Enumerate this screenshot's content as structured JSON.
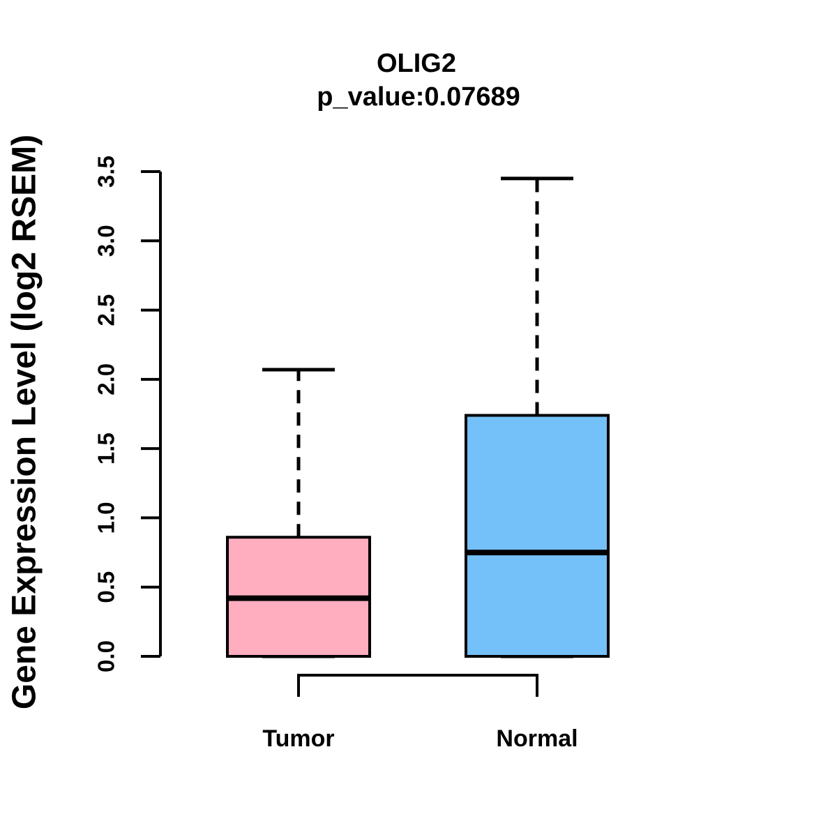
{
  "chart_data": {
    "type": "boxplot",
    "title": "OLIG2",
    "subtitle": "p_value:0.07689",
    "ylabel": "Gene Expression Level (log2 RSEM)",
    "ylim": [
      0.0,
      3.5
    ],
    "yticks": [
      0.0,
      0.5,
      1.0,
      1.5,
      2.0,
      2.5,
      3.0,
      3.5
    ],
    "categories": [
      "Tumor",
      "Normal"
    ],
    "series": [
      {
        "name": "Tumor",
        "color": "#FFAEC0",
        "lower_whisker": 0.0,
        "q1": 0.0,
        "median": 0.42,
        "q3": 0.86,
        "upper_whisker": 2.07
      },
      {
        "name": "Normal",
        "color": "#74C0F8",
        "lower_whisker": 0.0,
        "q1": 0.0,
        "median": 0.75,
        "q3": 1.74,
        "upper_whisker": 3.45
      }
    ],
    "bracket": {
      "connects": [
        "Tumor",
        "Normal"
      ]
    },
    "colors": {
      "axis": "#000000",
      "text": "#000000",
      "background": "#FFFFFF"
    },
    "legend": "none",
    "grid": "off"
  }
}
